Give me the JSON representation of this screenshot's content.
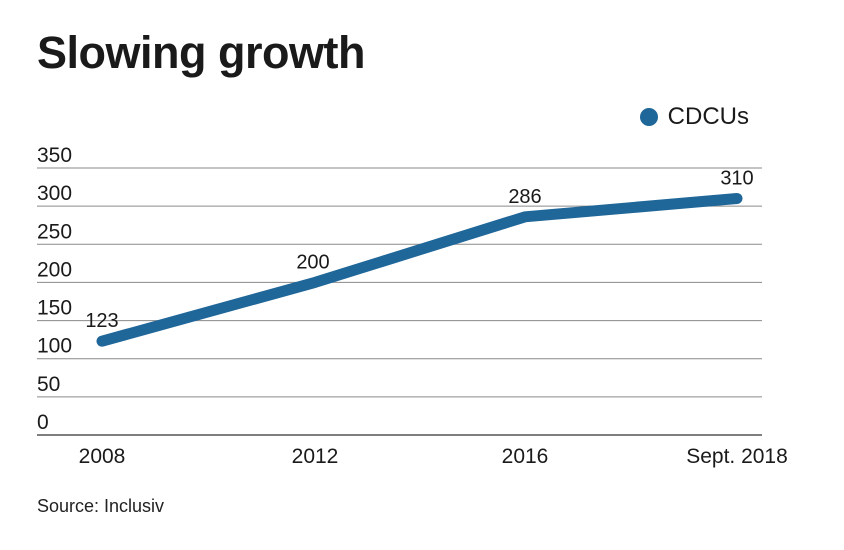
{
  "title": "Slowing growth",
  "source": "Source: Inclusiv",
  "colors": {
    "series": "#1f6699",
    "grid": "#8a8a8a",
    "text": "#1a1a1a"
  },
  "chart_data": {
    "type": "line",
    "title": "Slowing growth",
    "categories": [
      "2008",
      "2012",
      "2016",
      "Sept. 2018"
    ],
    "series": [
      {
        "name": "CDCUs",
        "values": [
          123,
          200,
          286,
          310
        ],
        "labels": [
          "123",
          "200",
          "286",
          "310"
        ]
      }
    ],
    "ylim": [
      0,
      350
    ],
    "yticks": [
      0,
      50,
      100,
      150,
      200,
      250,
      300,
      350
    ],
    "ytick_labels": [
      "0",
      "50",
      "100",
      "150",
      "200",
      "250",
      "300",
      "350"
    ],
    "grid": true,
    "legend": "top-right",
    "xlabel": "",
    "ylabel": ""
  }
}
